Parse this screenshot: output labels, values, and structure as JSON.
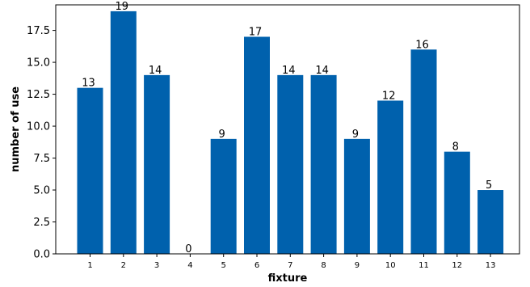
{
  "chart_data": {
    "type": "bar",
    "title": "",
    "xlabel": "fixture",
    "ylabel": "number of use",
    "categories": [
      "1",
      "2",
      "3",
      "4",
      "5",
      "6",
      "7",
      "8",
      "9",
      "10",
      "11",
      "12",
      "13"
    ],
    "values": [
      13,
      19,
      14,
      0,
      9,
      17,
      14,
      14,
      9,
      12,
      16,
      8,
      5
    ],
    "ylim": [
      0,
      19.5
    ],
    "yticks": [
      "0.0",
      "2.5",
      "5.0",
      "7.5",
      "10.0",
      "12.5",
      "15.0",
      "17.5"
    ],
    "bar_color": "#0061ad",
    "grid": false,
    "legend": "none"
  }
}
